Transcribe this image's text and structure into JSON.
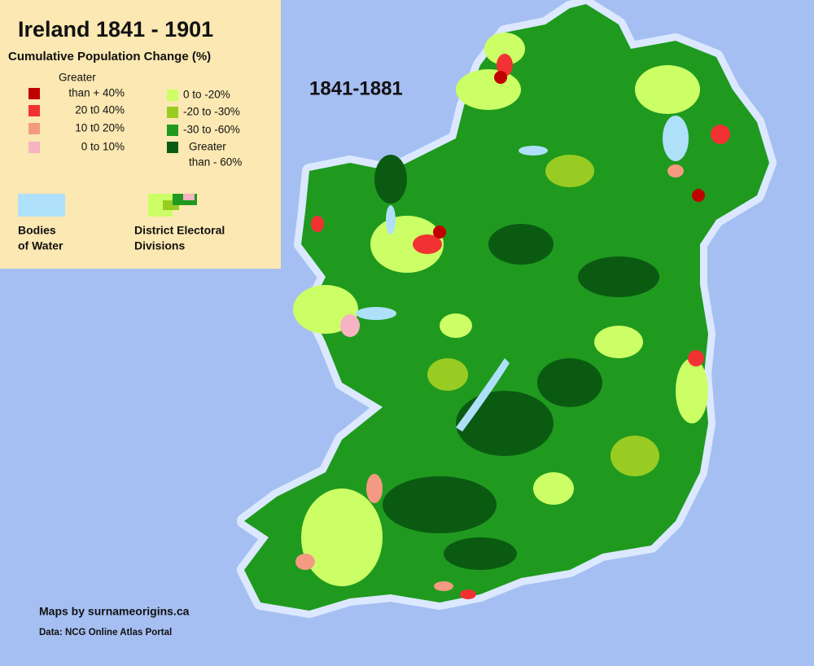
{
  "title": "Ireland 1841 - 1901",
  "subtitle": "Cumulative Population Change (%)",
  "period": "1841-1881",
  "legend": {
    "increase": [
      {
        "lines": [
          "Greater",
          "than + 40%"
        ],
        "color": "#c00000"
      },
      {
        "lines": [
          "20 t0 40%"
        ],
        "color": "#f23232"
      },
      {
        "lines": [
          "10 t0 20%"
        ],
        "color": "#f59a82"
      },
      {
        "lines": [
          "0 to 10%"
        ],
        "color": "#f5b3c3"
      }
    ],
    "decrease": [
      {
        "lines": [
          "0 to -20%"
        ],
        "color": "#ccff66"
      },
      {
        "lines": [
          "-20 to -30%"
        ],
        "color": "#99cc22"
      },
      {
        "lines": [
          "-30 to -60%"
        ],
        "color": "#1f9a1f"
      },
      {
        "lines": [
          "Greater",
          "than - 60%"
        ],
        "color": "#0b5a12"
      }
    ],
    "water": {
      "lines": [
        "Bodies",
        "of Water"
      ],
      "color": "#aee0fa"
    },
    "divisions": {
      "lines": [
        "District Electoral",
        "Divisions"
      ]
    }
  },
  "credits": {
    "maps": "Maps by surnameorigins.ca",
    "data": "Data: NCG Online Atlas Portal"
  }
}
